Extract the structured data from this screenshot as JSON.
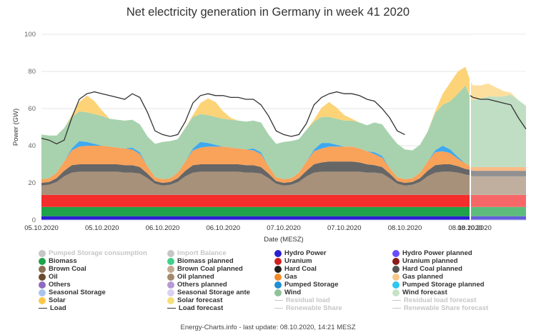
{
  "chart_data": {
    "type": "area",
    "title": "Net electricity generation in Germany in week 41 2020",
    "ylabel": "Power (GW)",
    "xlabel": "Date (MESZ)",
    "ylim": [
      0,
      100
    ],
    "yticks": [
      0,
      20,
      40,
      60,
      80,
      100
    ],
    "xlim": [
      0,
      5
    ],
    "xtick_labels": [
      {
        "x": 0,
        "label": "05.10.2020"
      },
      {
        "x": 0.5,
        "label": "05.10.2020"
      },
      {
        "x": 1.0,
        "label": "06.10.2020"
      },
      {
        "x": 1.5,
        "label": "06.10.2020"
      },
      {
        "x": 2.0,
        "label": "07.10.2020"
      },
      {
        "x": 2.5,
        "label": "07.10.2020"
      },
      {
        "x": 3.0,
        "label": "08.10.2020"
      },
      {
        "x": 3.5,
        "label": "08.10.2020"
      }
    ],
    "forecast_start": 3.54,
    "time_points": [
      0,
      0.0625,
      0.125,
      0.1875,
      0.25,
      0.3125,
      0.375,
      0.4375,
      0.5,
      0.5625,
      0.625,
      0.6875,
      0.75,
      0.8125,
      0.875,
      0.9375,
      1,
      1.0625,
      1.125,
      1.1875,
      1.25,
      1.3125,
      1.375,
      1.4375,
      1.5,
      1.5625,
      1.625,
      1.6875,
      1.75,
      1.8125,
      1.875,
      1.9375,
      2,
      2.0625,
      2.125,
      2.1875,
      2.25,
      2.3125,
      2.375,
      2.4375,
      2.5,
      2.5625,
      2.625,
      2.6875,
      2.75,
      2.8125,
      2.875,
      2.9375,
      3,
      3.0625,
      3.125,
      3.1875,
      3.25,
      3.3125,
      3.375,
      3.4375,
      3.5,
      3.54,
      3.5625,
      3.625,
      3.6875,
      3.75,
      3.8125,
      3.875,
      3.9375,
      4.0
    ],
    "series": [
      {
        "name": "Hydro Power",
        "color": "#2a1fd0",
        "values": [
          2,
          2,
          2,
          2,
          2,
          2,
          2,
          2,
          2,
          2,
          2,
          2,
          2,
          2,
          2,
          2,
          2,
          2,
          2,
          2,
          2,
          2,
          2,
          2,
          2,
          2,
          2,
          2,
          2,
          2,
          2,
          2,
          2,
          2,
          2,
          2,
          2,
          2,
          2,
          2,
          2,
          2,
          2,
          2,
          2,
          2,
          2,
          2,
          2,
          2,
          2,
          2,
          2,
          2,
          2,
          2,
          2,
          2,
          2,
          2,
          2,
          2,
          2,
          2,
          2,
          2
        ]
      },
      {
        "name": "Biomass",
        "color": "#1fa24a",
        "values": [
          5,
          5,
          5,
          5,
          5,
          5,
          5,
          5,
          5,
          5,
          5,
          5,
          5,
          5,
          5,
          5,
          5,
          5,
          5,
          5,
          5,
          5,
          5,
          5,
          5,
          5,
          5,
          5,
          5,
          5,
          5,
          5,
          5,
          5,
          5,
          5,
          5,
          5,
          5,
          5,
          5,
          5,
          5,
          5,
          5,
          5,
          5,
          5,
          5,
          5,
          5,
          5,
          5,
          5,
          5,
          5,
          5,
          5,
          5,
          5,
          5,
          5,
          5,
          5,
          5,
          5
        ]
      },
      {
        "name": "Uranium",
        "color": "#f42d2d",
        "values": [
          6.5,
          6.5,
          6.5,
          6.5,
          6.5,
          6.5,
          6.5,
          6.5,
          6.5,
          6.5,
          6.5,
          6.5,
          6.5,
          6.5,
          6.5,
          6.5,
          6.5,
          6.5,
          6.5,
          6.5,
          6.5,
          6.5,
          6.5,
          6.5,
          6.5,
          6.5,
          6.5,
          6.5,
          6.5,
          6.5,
          6.5,
          6.5,
          6.5,
          6.5,
          6.5,
          6.5,
          6.5,
          6.5,
          6.5,
          6.5,
          6.5,
          6.5,
          6.5,
          6.5,
          6.5,
          6.5,
          6.5,
          6.5,
          6.5,
          6.5,
          6.5,
          6.5,
          6.5,
          6.5,
          6.5,
          6.5,
          6.5,
          6.5,
          6.5,
          6.5,
          6.5,
          6.5,
          6.5,
          6.5,
          6.5,
          6.5
        ]
      },
      {
        "name": "Brown Coal",
        "color": "#a8917a",
        "values": [
          5,
          5.5,
          7,
          10,
          12,
          12.5,
          12.5,
          12.5,
          12.5,
          12.5,
          12.5,
          12,
          12,
          11.5,
          9,
          6,
          5,
          5.5,
          7,
          10,
          12,
          12.5,
          12.5,
          12.5,
          12.5,
          12.5,
          12.5,
          12,
          12,
          11.5,
          9,
          6,
          5,
          5.5,
          7,
          10,
          12,
          12.5,
          12.5,
          12.5,
          12.5,
          12.5,
          12.5,
          12,
          12,
          11.5,
          9,
          6,
          5,
          5.5,
          7,
          10,
          12,
          12.5,
          12.5,
          12,
          11,
          10.5,
          10,
          10,
          10,
          10,
          10,
          10,
          10,
          10
        ]
      },
      {
        "name": "Hard Coal",
        "color": "#666666",
        "values": [
          1.5,
          1.5,
          2,
          3,
          4,
          4,
          4,
          4,
          4,
          4,
          4,
          4,
          4,
          3.5,
          2.5,
          1.5,
          1.5,
          1.5,
          2,
          3,
          4,
          4,
          4,
          4,
          4,
          4,
          4,
          4,
          4,
          3.5,
          2.5,
          1.5,
          1.5,
          1.5,
          2,
          3,
          4.5,
          5,
          5.5,
          5.5,
          5.5,
          5.5,
          5,
          4.5,
          4,
          3.5,
          2.5,
          1.5,
          1.5,
          1.5,
          2,
          3,
          4,
          4,
          4,
          3.5,
          3,
          3,
          3,
          3,
          3,
          3,
          3,
          3,
          3,
          3
        ]
      },
      {
        "name": "Gas",
        "color": "#f9a25a",
        "values": [
          2,
          2,
          3,
          5,
          8,
          9.5,
          10,
          10,
          10,
          9.5,
          9,
          9,
          8.5,
          7,
          4,
          2,
          2,
          2,
          3,
          5,
          8,
          9,
          9.5,
          9.5,
          9.5,
          9,
          8.5,
          8.5,
          8,
          7,
          4,
          2,
          2,
          2,
          3,
          5,
          7,
          7.5,
          8,
          8,
          8,
          8,
          7.5,
          7,
          6,
          5,
          3,
          2,
          2,
          2,
          3,
          5,
          7,
          7,
          6,
          4,
          3,
          2,
          2,
          2,
          2,
          2,
          2,
          2,
          2,
          2
        ]
      },
      {
        "name": "Pumped Storage",
        "color": "#3da9f0",
        "values": [
          0,
          0,
          0,
          0,
          1,
          3,
          2,
          1,
          0,
          0,
          0,
          0,
          1,
          1,
          0,
          0,
          0,
          0,
          0,
          0,
          1,
          3,
          2,
          1,
          0,
          0,
          0,
          0,
          1,
          1,
          0,
          0,
          0,
          0,
          0,
          0,
          1,
          3,
          2,
          1,
          0,
          0,
          0,
          0,
          1,
          1,
          0,
          0,
          0,
          0,
          0,
          0,
          1,
          3,
          2,
          1,
          0,
          0,
          0,
          0,
          0,
          0,
          0,
          0,
          0,
          0
        ]
      },
      {
        "name": "Wind",
        "color": "#a7d2ad",
        "values": [
          24,
          23,
          20,
          18,
          17,
          16,
          16,
          16,
          16,
          15,
          15,
          15,
          15,
          15,
          16,
          18,
          20,
          20,
          18,
          18,
          17,
          15,
          15,
          15,
          15,
          15,
          15,
          15,
          15,
          16,
          17,
          18,
          20,
          20,
          18,
          17,
          15,
          14,
          14,
          14,
          14,
          14,
          14,
          14,
          16,
          17,
          18,
          18,
          16,
          15,
          15,
          16,
          20,
          22,
          26,
          34,
          42,
          37,
          36,
          37,
          38,
          38,
          38,
          39,
          36,
          33
        ]
      },
      {
        "name": "Solar",
        "color": "#fdd378",
        "values": [
          0,
          0,
          0,
          0,
          1,
          5,
          9,
          7,
          3,
          0,
          0,
          0,
          0,
          0,
          0,
          0,
          0,
          0,
          0,
          0,
          1,
          6,
          9,
          8,
          4,
          1,
          0,
          0,
          0,
          0,
          0,
          0,
          0,
          0,
          0,
          0,
          1,
          5,
          8,
          6,
          3,
          1,
          0,
          0,
          0,
          0,
          0,
          0,
          0,
          0,
          0,
          0,
          1,
          6,
          10,
          12,
          10,
          9,
          8,
          7,
          7,
          5,
          3,
          1,
          0,
          0
        ]
      }
    ],
    "load": {
      "name": "Load",
      "color": "#333333",
      "x": [
        0,
        0.0625,
        0.125,
        0.1875,
        0.25,
        0.3125,
        0.375,
        0.4375,
        0.5,
        0.5625,
        0.625,
        0.6875,
        0.75,
        0.8125,
        0.875,
        0.9375,
        1,
        1.0625,
        1.125,
        1.1875,
        1.25,
        1.3125,
        1.375,
        1.4375,
        1.5,
        1.5625,
        1.625,
        1.6875,
        1.75,
        1.8125,
        1.875,
        1.9375,
        2,
        2.0625,
        2.125,
        2.1875,
        2.25,
        2.3125,
        2.375,
        2.4375,
        2.5,
        2.5625,
        2.625,
        2.6875,
        2.75,
        2.8125,
        2.875,
        2.9375,
        3
      ],
      "values": [
        44,
        43,
        41,
        43,
        55,
        65,
        68,
        69,
        68,
        67,
        66,
        65,
        68,
        66,
        58,
        48,
        46,
        45,
        46,
        53,
        63,
        67,
        68,
        67,
        67,
        66,
        66,
        65,
        65,
        62,
        56,
        48,
        46,
        45,
        46,
        52,
        62,
        66,
        68,
        69,
        68,
        68,
        67,
        65,
        64,
        60,
        55,
        48,
        46
      ]
    },
    "load_forecast": {
      "name": "Load forecast",
      "color": "#333333",
      "x": [
        3.54,
        3.5625,
        3.625,
        3.6875,
        3.75,
        3.8125,
        3.875,
        3.9375,
        4.0
      ],
      "values": [
        67,
        66,
        65,
        65,
        64,
        63,
        62,
        55,
        49
      ]
    }
  },
  "legend": [
    {
      "label": "Pumped Storage consumption",
      "color": "#c6c6c6",
      "type": "dot",
      "muted": true
    },
    {
      "label": "Import Balance",
      "color": "#c6c6c6",
      "type": "dot",
      "muted": true
    },
    {
      "label": "Hydro Power",
      "color": "#2a1fd0",
      "type": "dot",
      "muted": false
    },
    {
      "label": "Hydro Power planned",
      "color": "#6a4bff",
      "type": "dot",
      "muted": false
    },
    {
      "label": "Biomass",
      "color": "#1fa24a",
      "type": "dot",
      "muted": false
    },
    {
      "label": "Biomass planned",
      "color": "#3fd18a",
      "type": "dot",
      "muted": false
    },
    {
      "label": "Uranium",
      "color": "#d01f1f",
      "type": "dot",
      "muted": false
    },
    {
      "label": "Uranium planned",
      "color": "#8b1a1a",
      "type": "dot",
      "muted": false
    },
    {
      "label": "Brown Coal",
      "color": "#8b6e53",
      "type": "dot",
      "muted": false
    },
    {
      "label": "Brown Coal planned",
      "color": "#c2ab91",
      "type": "dot",
      "muted": false
    },
    {
      "label": "Hard Coal",
      "color": "#1f1f1f",
      "type": "dot",
      "muted": false
    },
    {
      "label": "Hard Coal planned",
      "color": "#555555",
      "type": "dot",
      "muted": false
    },
    {
      "label": "Oil",
      "color": "#6b4a2e",
      "type": "dot",
      "muted": false
    },
    {
      "label": "Oil planned",
      "color": "#a38a6d",
      "type": "dot",
      "muted": false
    },
    {
      "label": "Gas",
      "color": "#f28a2a",
      "type": "dot",
      "muted": false
    },
    {
      "label": "Gas planned",
      "color": "#f6c98a",
      "type": "dot",
      "muted": false
    },
    {
      "label": "Others",
      "color": "#8f6bbf",
      "type": "dot",
      "muted": false
    },
    {
      "label": "Others planned",
      "color": "#b59bd6",
      "type": "dot",
      "muted": false
    },
    {
      "label": "Pumped Storage",
      "color": "#1f8fd6",
      "type": "dot",
      "muted": false
    },
    {
      "label": "Pumped Storage planned",
      "color": "#2fc6f0",
      "type": "dot",
      "muted": false
    },
    {
      "label": "Seasonal Storage",
      "color": "#a9c3f0",
      "type": "dot",
      "muted": false
    },
    {
      "label": "Seasonal Storage ante",
      "color": "#d9d0f3",
      "type": "dot",
      "muted": false
    },
    {
      "label": "Wind",
      "color": "#8fc29a",
      "type": "dot",
      "muted": false
    },
    {
      "label": "Wind forecast",
      "color": "#c7e3c6",
      "type": "dot",
      "muted": false
    },
    {
      "label": "Solar",
      "color": "#fbc84a",
      "type": "dot",
      "muted": false
    },
    {
      "label": "Solar forecast",
      "color": "#f7e07a",
      "type": "dot",
      "muted": false
    },
    {
      "label": "Residual load",
      "color": "#c6c6c6",
      "type": "line",
      "muted": true
    },
    {
      "label": "Residual load forecast",
      "color": "#c6c6c6",
      "type": "line",
      "muted": true
    },
    {
      "label": "Load",
      "color": "#333333",
      "type": "line",
      "muted": false
    },
    {
      "label": "Load forecast",
      "color": "#333333",
      "type": "line",
      "muted": false
    },
    {
      "label": "Renewable Share",
      "color": "#c6c6c6",
      "type": "line",
      "muted": true
    },
    {
      "label": "Renewable Share forecast",
      "color": "#c6c6c6",
      "type": "line",
      "muted": true
    }
  ],
  "footer": "Energy-Charts.info - last update: 08.10.2020, 14:21 MESZ"
}
